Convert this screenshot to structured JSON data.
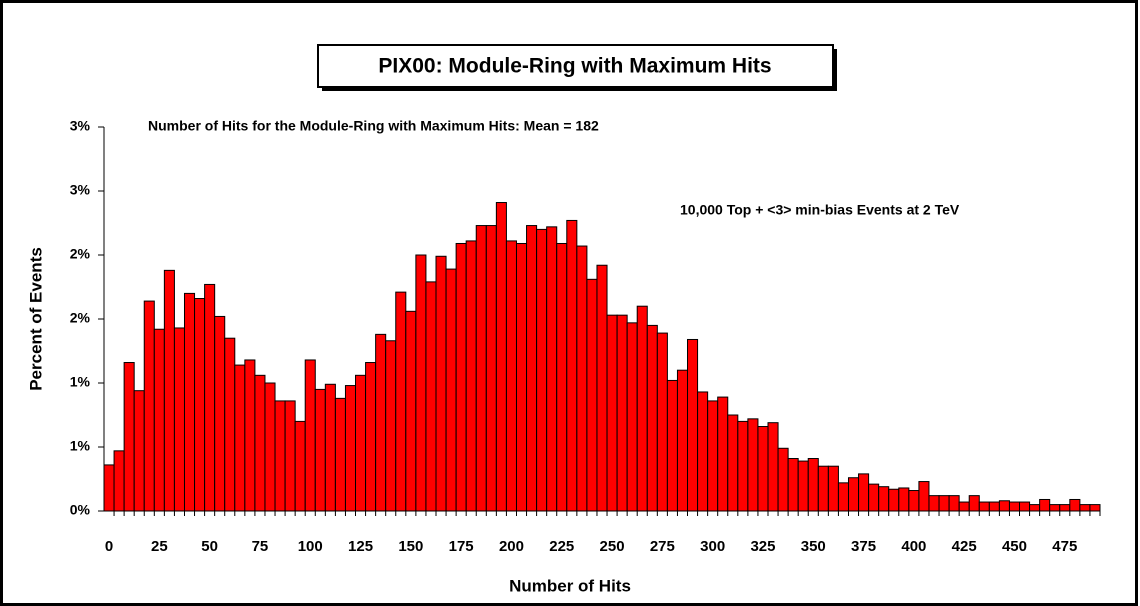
{
  "chart_data": {
    "type": "bar",
    "title": "PIX00: Module-Ring with Maximum Hits",
    "subtitle": "Number of Hits for the Module-Ring with Maximum Hits: Mean = 182",
    "annotation": "10,000 Top + <3> min-bias Events at 2 TeV",
    "x_label": "Number of Hits",
    "y_label": "Percent of Events",
    "color": "#ff0000",
    "categories": [
      "0",
      null,
      null,
      null,
      null,
      "25",
      null,
      null,
      null,
      null,
      "50",
      null,
      null,
      null,
      null,
      "75",
      null,
      null,
      null,
      null,
      "100",
      null,
      null,
      null,
      null,
      "125",
      null,
      null,
      null,
      null,
      "150",
      null,
      null,
      null,
      null,
      "175",
      null,
      null,
      null,
      null,
      "200",
      null,
      null,
      null,
      null,
      "225",
      null,
      null,
      null,
      null,
      "250",
      null,
      null,
      null,
      null,
      "275",
      null,
      null,
      null,
      null,
      "300",
      null,
      null,
      null,
      null,
      "325",
      null,
      null,
      null,
      null,
      "350",
      null,
      null,
      null,
      null,
      "375",
      null,
      null,
      null,
      null,
      "400",
      null,
      null,
      null,
      null,
      "425",
      null,
      null,
      null,
      null,
      "450",
      null,
      null,
      null,
      null,
      "475",
      null,
      null,
      null
    ],
    "values": [
      0.36,
      0.47,
      1.16,
      0.94,
      1.64,
      1.42,
      1.88,
      1.43,
      1.7,
      1.66,
      1.77,
      1.52,
      1.35,
      1.14,
      1.18,
      1.06,
      1.0,
      0.86,
      0.86,
      0.7,
      1.18,
      0.95,
      0.99,
      0.88,
      0.98,
      1.06,
      1.16,
      1.38,
      1.33,
      1.71,
      1.56,
      2.0,
      1.79,
      1.99,
      1.89,
      2.09,
      2.11,
      2.23,
      2.23,
      2.41,
      2.11,
      2.09,
      2.23,
      2.2,
      2.22,
      2.09,
      2.27,
      2.07,
      1.81,
      1.92,
      1.53,
      1.53,
      1.47,
      1.6,
      1.45,
      1.39,
      1.02,
      1.1,
      1.34,
      0.93,
      0.86,
      0.89,
      0.75,
      0.7,
      0.72,
      0.66,
      0.69,
      0.49,
      0.41,
      0.39,
      0.41,
      0.35,
      0.35,
      0.22,
      0.26,
      0.29,
      0.21,
      0.19,
      0.17,
      0.18,
      0.16,
      0.23,
      0.12,
      0.12,
      0.12,
      0.07,
      0.12,
      0.07,
      0.07,
      0.08,
      0.07,
      0.07,
      0.05,
      0.09,
      0.05,
      0.05,
      0.09,
      0.05,
      0.05
    ],
    "ylim": [
      0,
      3
    ],
    "yticks": [
      0,
      {
        "value": 0.5,
        "label": "1%"
      },
      {
        "value": 1,
        "label": "1%"
      },
      {
        "value": 1.5,
        "label": "2%"
      },
      {
        "value": 2,
        "label": "2%"
      },
      {
        "value": 2.5,
        "label": "3%"
      },
      {
        "value": 3,
        "label": "3%"
      }
    ],
    "ytick_zero_label": "0%",
    "grid": false
  }
}
